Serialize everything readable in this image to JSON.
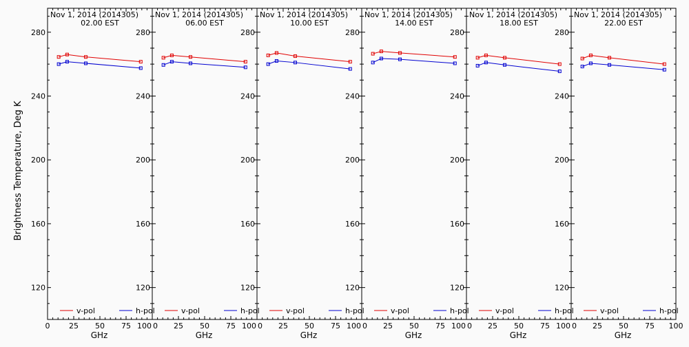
{
  "chart_data": {
    "type": "line",
    "ylabel": "Brightness Temperature, Deg K",
    "xlabel": "GHz",
    "xlim": [
      0,
      100
    ],
    "ylim": [
      100,
      295
    ],
    "xticks": [
      0,
      25,
      50,
      75,
      100
    ],
    "yticks": [
      120,
      160,
      200,
      240,
      280
    ],
    "grid": false,
    "legend_position": "bottom",
    "colors": {
      "v-pol": "#e00000",
      "h-pol": "#0000d0"
    },
    "x": [
      10.65,
      18.7,
      36.5,
      89.0
    ],
    "panels": [
      {
        "title_line1": "Nov  1, 2014 (2014305)",
        "title_line2": "02.00 EST",
        "series": [
          {
            "name": "v-pol",
            "values": [
              264.5,
              266.0,
              264.5,
              261.5
            ]
          },
          {
            "name": "h-pol",
            "values": [
              260.0,
              261.5,
              260.5,
              257.5
            ]
          }
        ]
      },
      {
        "title_line1": "Nov  1, 2014 (2014305)",
        "title_line2": "06.00 EST",
        "series": [
          {
            "name": "v-pol",
            "values": [
              264.0,
              265.5,
              264.5,
              261.5
            ]
          },
          {
            "name": "h-pol",
            "values": [
              259.5,
              261.5,
              260.5,
              258.0
            ]
          }
        ]
      },
      {
        "title_line1": "Nov  1, 2014 (2014305)",
        "title_line2": "10.00 EST",
        "series": [
          {
            "name": "v-pol",
            "values": [
              265.5,
              267.0,
              265.0,
              261.5
            ]
          },
          {
            "name": "h-pol",
            "values": [
              260.0,
              262.0,
              261.0,
              257.0
            ]
          }
        ]
      },
      {
        "title_line1": "Nov  1, 2014 (2014305)",
        "title_line2": "14.00 EST",
        "series": [
          {
            "name": "v-pol",
            "values": [
              266.5,
              268.0,
              267.0,
              264.5
            ]
          },
          {
            "name": "h-pol",
            "values": [
              261.0,
              263.5,
              263.0,
              260.5
            ]
          }
        ]
      },
      {
        "title_line1": "Nov  1, 2014 (2014305)",
        "title_line2": "18.00 EST",
        "series": [
          {
            "name": "v-pol",
            "values": [
              264.0,
              265.5,
              264.0,
              260.0
            ]
          },
          {
            "name": "h-pol",
            "values": [
              259.0,
              261.0,
              259.5,
              255.5
            ]
          }
        ]
      },
      {
        "title_line1": "Nov  1, 2014 (2014305)",
        "title_line2": "22.00 EST",
        "series": [
          {
            "name": "v-pol",
            "values": [
              263.5,
              265.5,
              264.0,
              260.0
            ]
          },
          {
            "name": "h-pol",
            "values": [
              258.5,
              260.5,
              259.5,
              256.5
            ]
          }
        ]
      }
    ]
  }
}
